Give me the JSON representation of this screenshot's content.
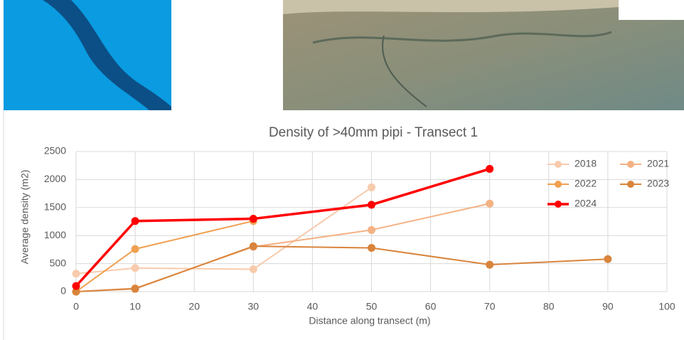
{
  "chart_data": {
    "type": "line",
    "title": "Density of >40mm pipi - Transect 1",
    "x_label": "Distance along transect (m)",
    "y_label": "Average density (m2)",
    "xlim": [
      0,
      100
    ],
    "xticks": [
      0,
      10,
      20,
      30,
      40,
      50,
      60,
      70,
      80,
      90,
      100
    ],
    "ylim": [
      0,
      2500
    ],
    "yticks": [
      0,
      500,
      1000,
      1500,
      2000,
      2500
    ],
    "grid": true,
    "legend": "top-right",
    "series": [
      {
        "name": "2018",
        "color": "#f8cbad",
        "x": [
          0,
          10,
          30,
          50
        ],
        "values": [
          320,
          420,
          400,
          1860
        ]
      },
      {
        "name": "2021",
        "color": "#f4b183",
        "x": [
          0,
          10,
          30,
          50,
          70
        ],
        "values": [
          0,
          60,
          800,
          1100,
          1570
        ]
      },
      {
        "name": "2022",
        "color": "#f0a050",
        "x": [
          0,
          10,
          30
        ],
        "values": [
          0,
          760,
          1260
        ]
      },
      {
        "name": "2023",
        "color": "#d9843c",
        "x": [
          0,
          10,
          30,
          50,
          70,
          90
        ],
        "values": [
          0,
          50,
          810,
          780,
          480,
          580
        ]
      },
      {
        "name": "2024",
        "color": "#ff0000",
        "x": [
          0,
          10,
          30,
          50,
          70
        ],
        "values": [
          100,
          1260,
          1300,
          1550,
          2190
        ]
      }
    ]
  }
}
